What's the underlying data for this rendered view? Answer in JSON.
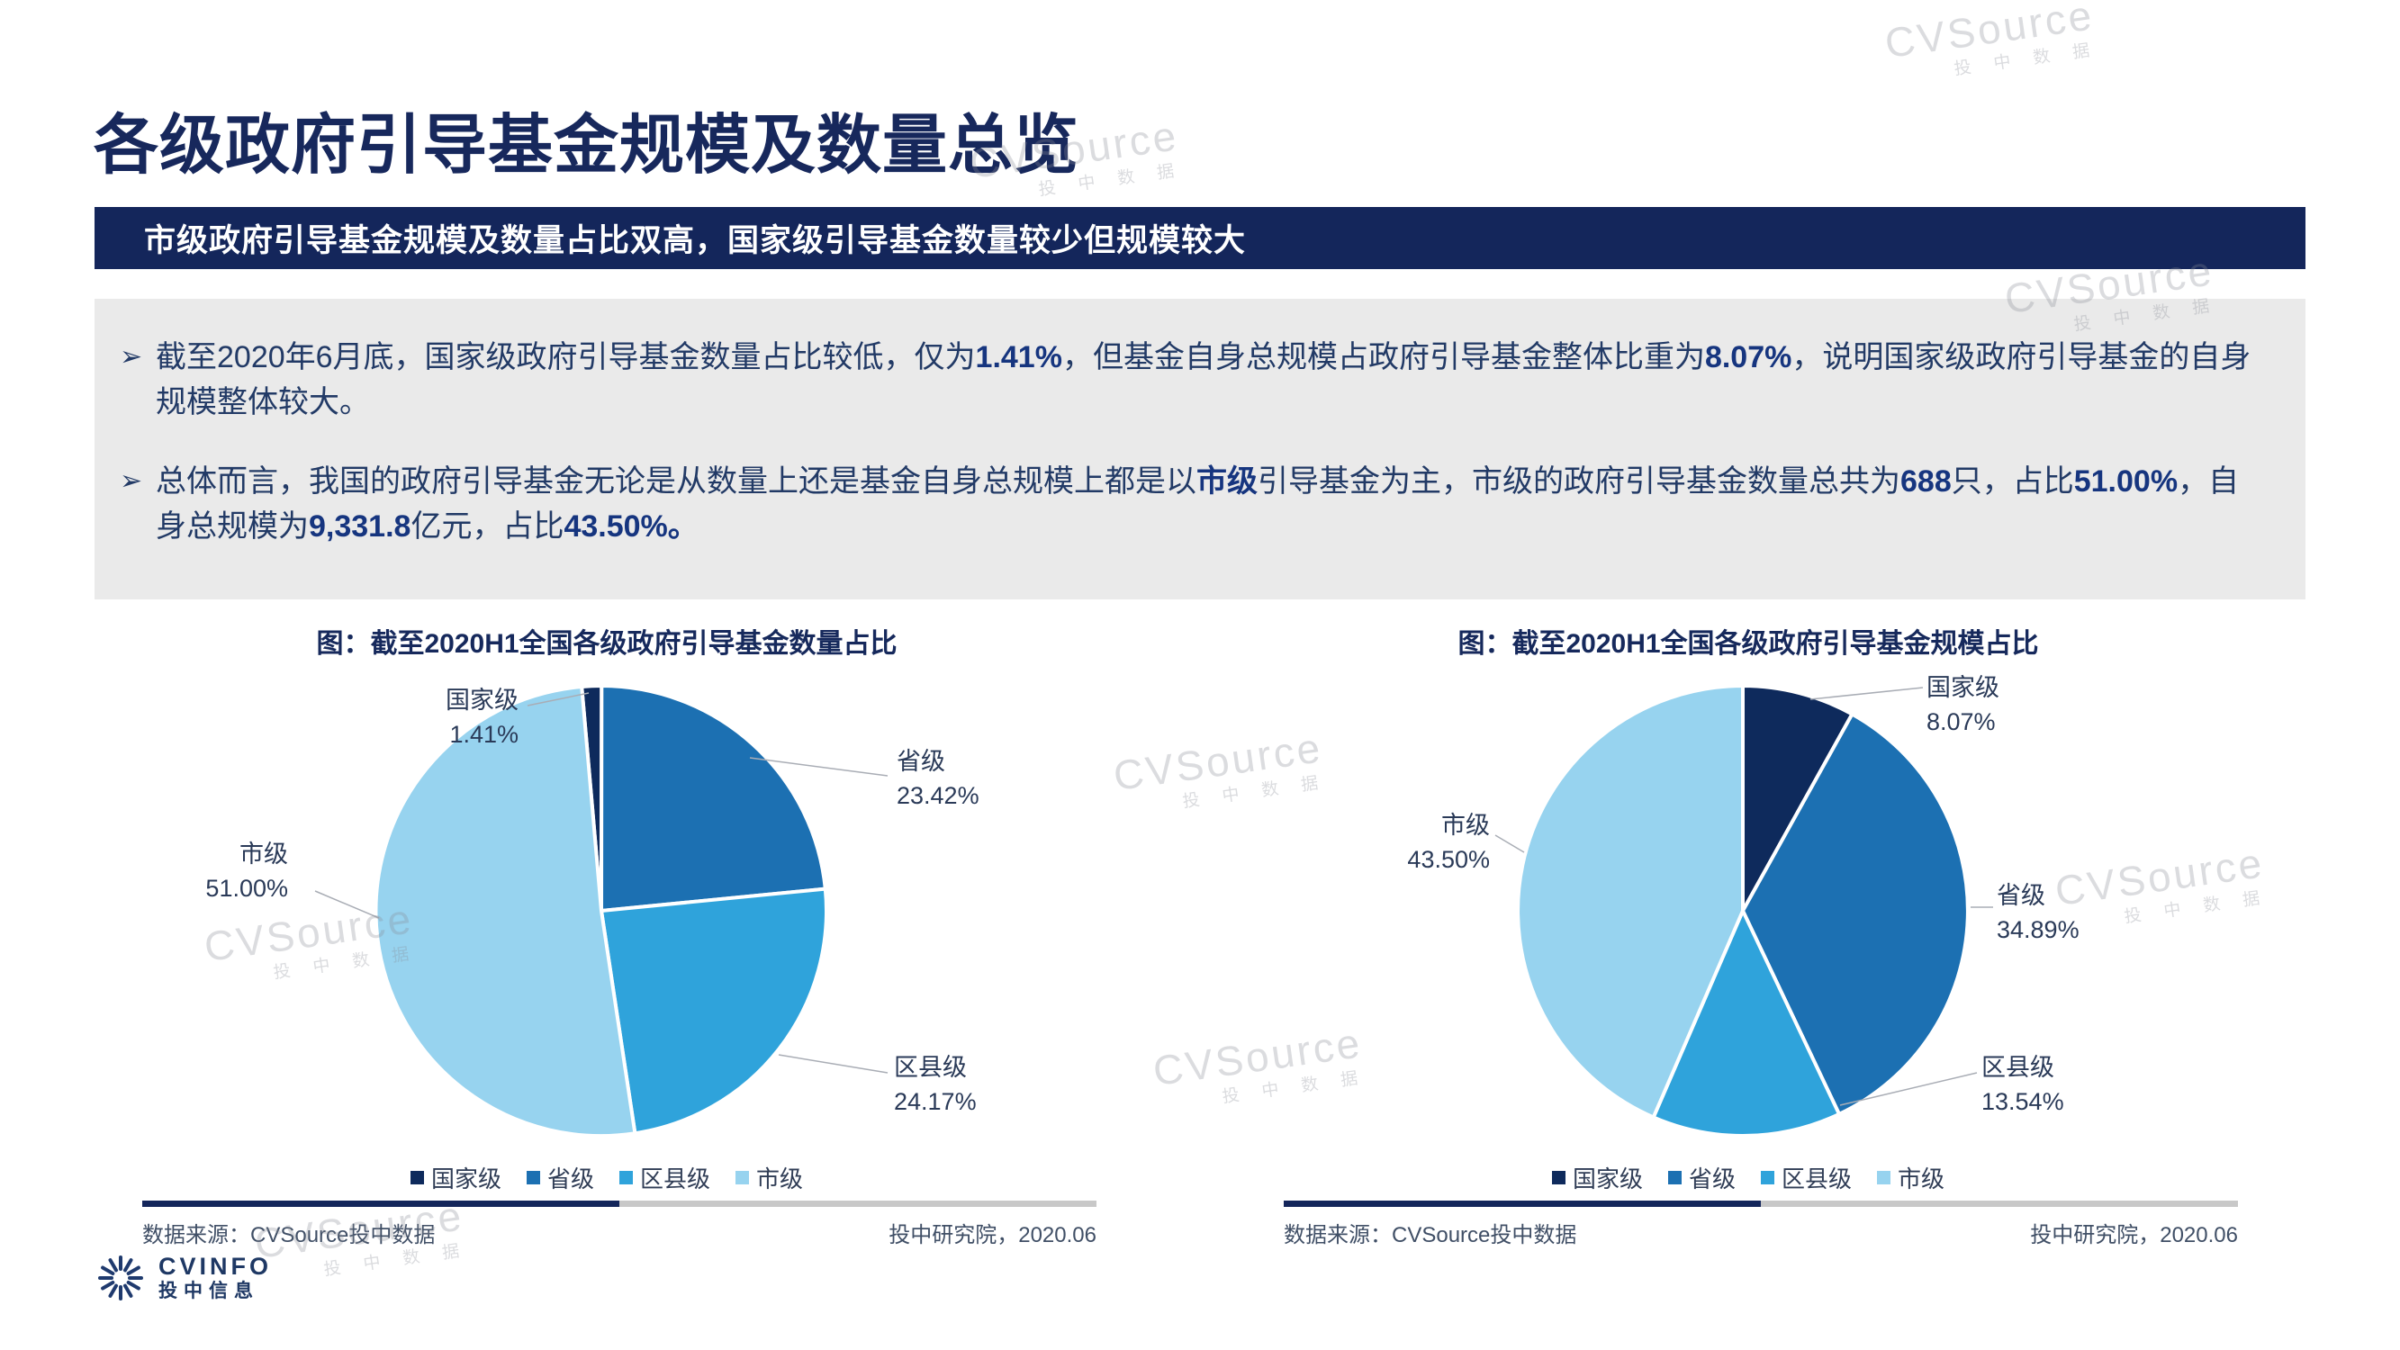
{
  "page": {
    "title": "各级政府引导基金规模及数量总览",
    "banner": "市级政府引导基金规模及数量占比双高，国家级引导基金数量较少但规模较大",
    "bullet_marker": "➢"
  },
  "bullets": [
    {
      "segments": [
        {
          "t": "截至2020年6月底，国家级政府引导基金数量占比较低，仅为",
          "b": false
        },
        {
          "t": "1.41%",
          "b": true
        },
        {
          "t": "，但基金自身总规模占政府引导基金整体比重为",
          "b": false
        },
        {
          "t": "8.07%",
          "b": true
        },
        {
          "t": "，说明国家级政府引导基金的自身规模整体较大。",
          "b": false
        }
      ]
    },
    {
      "segments": [
        {
          "t": "总体而言，我国的政府引导基金无论是从数量上还是基金自身总规模上都是以",
          "b": false
        },
        {
          "t": "市级",
          "b": true
        },
        {
          "t": "引导基金为主，市级的政府引导基金数量总共为",
          "b": false
        },
        {
          "t": "688",
          "b": true
        },
        {
          "t": "只，占比",
          "b": false
        },
        {
          "t": "51.00%",
          "b": true
        },
        {
          "t": "，自身总规模为",
          "b": false
        },
        {
          "t": "9,331.8",
          "b": true
        },
        {
          "t": "亿元，占比",
          "b": false
        },
        {
          "t": "43.50%。",
          "b": true
        }
      ]
    }
  ],
  "chart_data": [
    {
      "type": "pie",
      "title": "图：截至2020H1全国各级政府引导基金数量占比",
      "categories": [
        "国家级",
        "省级",
        "区县级",
        "市级"
      ],
      "values": [
        1.41,
        23.42,
        24.17,
        51.0
      ],
      "unit": "%",
      "colors": [
        "#0E2A5C",
        "#1C70B2",
        "#2FA3DB",
        "#97D3EF"
      ],
      "legend_position": "bottom"
    },
    {
      "type": "pie",
      "title": "图：截至2020H1全国各级政府引导基金规模占比",
      "categories": [
        "国家级",
        "省级",
        "区县级",
        "市级"
      ],
      "values": [
        8.07,
        34.89,
        13.54,
        43.5
      ],
      "unit": "%",
      "colors": [
        "#0E2A5C",
        "#1C70B2",
        "#2FA3DB",
        "#97D3EF"
      ],
      "legend_position": "bottom"
    }
  ],
  "footer": {
    "source": "数据来源：CVSource投中数据",
    "credit": "投中研究院，2020.06"
  },
  "watermark": {
    "brand": "CVSource",
    "sub": "投 中 数 据"
  },
  "logo": {
    "title": "CVINFO",
    "subtitle": "投中信息"
  }
}
